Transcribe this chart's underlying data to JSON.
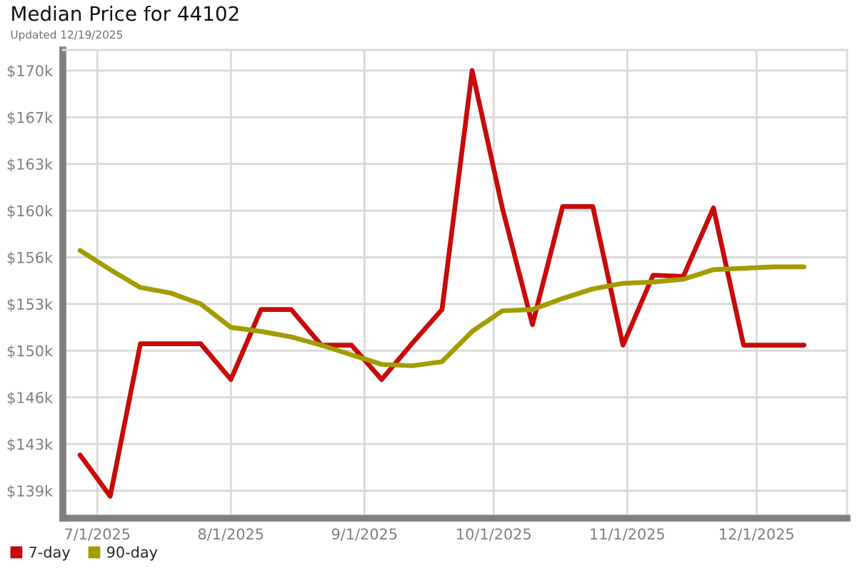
{
  "chart_data": {
    "type": "line",
    "title": "Median Price for 44102",
    "subtitle": "Updated 12/19/2025",
    "x": [
      "2025-06-27",
      "2025-07-04",
      "2025-07-11",
      "2025-07-18",
      "2025-07-25",
      "2025-08-01",
      "2025-08-08",
      "2025-08-15",
      "2025-08-22",
      "2025-08-29",
      "2025-09-05",
      "2025-09-12",
      "2025-09-19",
      "2025-09-26",
      "2025-10-03",
      "2025-10-10",
      "2025-10-17",
      "2025-10-24",
      "2025-10-31",
      "2025-11-07",
      "2025-11-14",
      "2025-11-21",
      "2025-11-28",
      "2025-12-05",
      "2025-12-12"
    ],
    "series": [
      {
        "name": "7-day",
        "color": "#c80a0a",
        "values": [
          142000,
          139000,
          150100,
          150100,
          150100,
          147500,
          152600,
          152600,
          150000,
          150000,
          147500,
          150100,
          152600,
          170000,
          160000,
          151500,
          160100,
          160100,
          150000,
          155100,
          155000,
          160000,
          150000,
          150000,
          150000
        ]
      },
      {
        "name": "90-day",
        "color": "#a29c00",
        "values": [
          156900,
          155500,
          154200,
          153800,
          153000,
          151300,
          151000,
          150600,
          150000,
          149300,
          148600,
          148500,
          148800,
          151000,
          152500,
          152600,
          153400,
          154100,
          154500,
          154600,
          154800,
          155500,
          155600,
          155700,
          155700
        ]
      }
    ],
    "xlim": [
      "2025-06-23",
      "2025-12-22"
    ],
    "xticks": [
      {
        "value": "2025-07-01",
        "label": "7/1/2025"
      },
      {
        "value": "2025-08-01",
        "label": "8/1/2025"
      },
      {
        "value": "2025-09-01",
        "label": "9/1/2025"
      },
      {
        "value": "2025-10-01",
        "label": "10/1/2025"
      },
      {
        "value": "2025-11-01",
        "label": "11/1/2025"
      },
      {
        "value": "2025-12-01",
        "label": "12/1/2025"
      }
    ],
    "ylim": [
      137400,
      171500
    ],
    "yticks": [
      {
        "value": 139400,
        "label": "$139k"
      },
      {
        "value": 142800,
        "label": "$143k"
      },
      {
        "value": 146200,
        "label": "$146k"
      },
      {
        "value": 149600,
        "label": "$150k"
      },
      {
        "value": 153000,
        "label": "$153k"
      },
      {
        "value": 156400,
        "label": "$156k"
      },
      {
        "value": 159800,
        "label": "$160k"
      },
      {
        "value": 163200,
        "label": "$163k"
      },
      {
        "value": 166600,
        "label": "$167k"
      },
      {
        "value": 170000,
        "label": "$170k"
      }
    ],
    "grid": true,
    "legend": "bottom"
  }
}
